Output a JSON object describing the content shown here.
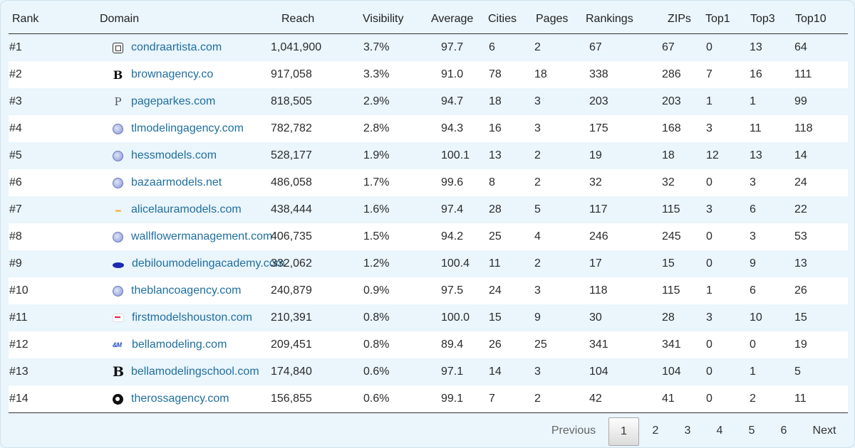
{
  "columns": [
    "Rank",
    "Domain",
    "Reach",
    "Visibility",
    "Average",
    "Cities",
    "Pages",
    "Rankings",
    "ZIPs",
    "Top1",
    "Top3",
    "Top10"
  ],
  "rows": [
    {
      "rank": "#1",
      "domain": "condraartista.com",
      "icon": "framed-square-icon",
      "reach": "1,041,900",
      "visibility": "3.7%",
      "average": "97.7",
      "cities": "6",
      "pages": "2",
      "rankings": "67",
      "zips": "67",
      "top1": "0",
      "top3": "13",
      "top10": "64"
    },
    {
      "rank": "#2",
      "domain": "brownagency.co",
      "icon": "letter-b-icon",
      "reach": "917,058",
      "visibility": "3.3%",
      "average": "91.0",
      "cities": "78",
      "pages": "18",
      "rankings": "338",
      "zips": "286",
      "top1": "7",
      "top3": "16",
      "top10": "111"
    },
    {
      "rank": "#3",
      "domain": "pageparkes.com",
      "icon": "letter-p-icon",
      "reach": "818,505",
      "visibility": "2.9%",
      "average": "94.7",
      "cities": "18",
      "pages": "3",
      "rankings": "203",
      "zips": "203",
      "top1": "1",
      "top3": "1",
      "top10": "99"
    },
    {
      "rank": "#4",
      "domain": "tlmodelingagency.com",
      "icon": "globe-icon",
      "reach": "782,782",
      "visibility": "2.8%",
      "average": "94.3",
      "cities": "16",
      "pages": "3",
      "rankings": "175",
      "zips": "168",
      "top1": "3",
      "top3": "11",
      "top10": "118"
    },
    {
      "rank": "#5",
      "domain": "hessmodels.com",
      "icon": "globe-icon",
      "reach": "528,177",
      "visibility": "1.9%",
      "average": "100.1",
      "cities": "13",
      "pages": "2",
      "rankings": "19",
      "zips": "18",
      "top1": "12",
      "top3": "13",
      "top10": "14"
    },
    {
      "rank": "#6",
      "domain": "bazaarmodels.net",
      "icon": "globe-icon",
      "reach": "486,058",
      "visibility": "1.7%",
      "average": "99.6",
      "cities": "8",
      "pages": "2",
      "rankings": "32",
      "zips": "32",
      "top1": "0",
      "top3": "3",
      "top10": "24"
    },
    {
      "rank": "#7",
      "domain": "alicelauramodels.com",
      "icon": "sunrise-icon",
      "reach": "438,444",
      "visibility": "1.6%",
      "average": "97.4",
      "cities": "28",
      "pages": "5",
      "rankings": "117",
      "zips": "115",
      "top1": "3",
      "top3": "6",
      "top10": "22"
    },
    {
      "rank": "#8",
      "domain": "wallflowermanagement.com",
      "icon": "globe-icon",
      "reach": "406,735",
      "visibility": "1.5%",
      "average": "94.2",
      "cities": "25",
      "pages": "4",
      "rankings": "246",
      "zips": "245",
      "top1": "0",
      "top3": "3",
      "top10": "53"
    },
    {
      "rank": "#9",
      "domain": "debiloumodelingacademy.com",
      "icon": "blue-oval-icon",
      "reach": "332,062",
      "visibility": "1.2%",
      "average": "100.4",
      "cities": "11",
      "pages": "2",
      "rankings": "17",
      "zips": "15",
      "top1": "0",
      "top3": "9",
      "top10": "13"
    },
    {
      "rank": "#10",
      "domain": "theblancoagency.com",
      "icon": "globe-icon",
      "reach": "240,879",
      "visibility": "0.9%",
      "average": "97.5",
      "cities": "24",
      "pages": "3",
      "rankings": "118",
      "zips": "115",
      "top1": "1",
      "top3": "6",
      "top10": "26"
    },
    {
      "rank": "#11",
      "domain": "firstmodelshouston.com",
      "icon": "flag-icon",
      "reach": "210,391",
      "visibility": "0.8%",
      "average": "100.0",
      "cities": "15",
      "pages": "9",
      "rankings": "30",
      "zips": "28",
      "top1": "3",
      "top3": "10",
      "top10": "15"
    },
    {
      "rank": "#12",
      "domain": "bellamodeling.com",
      "icon": "bm-logo-icon",
      "reach": "209,451",
      "visibility": "0.8%",
      "average": "89.4",
      "cities": "26",
      "pages": "25",
      "rankings": "341",
      "zips": "341",
      "top1": "0",
      "top3": "0",
      "top10": "19"
    },
    {
      "rank": "#13",
      "domain": "bellamodelingschool.com",
      "icon": "letter-b-icon",
      "reach": "174,840",
      "visibility": "0.6%",
      "average": "97.1",
      "cities": "14",
      "pages": "3",
      "rankings": "104",
      "zips": "104",
      "top1": "0",
      "top3": "1",
      "top10": "5"
    },
    {
      "rank": "#14",
      "domain": "therossagency.com",
      "icon": "circle-logo-icon",
      "reach": "156,855",
      "visibility": "0.6%",
      "average": "99.1",
      "cities": "7",
      "pages": "2",
      "rankings": "42",
      "zips": "41",
      "top1": "0",
      "top3": "2",
      "top10": "11"
    }
  ],
  "pagination": {
    "previous": "Previous",
    "pages": [
      "1",
      "2",
      "3",
      "4",
      "5",
      "6"
    ],
    "active_page": "1",
    "next": "Next"
  },
  "colors": {
    "link": "#1f6f9f",
    "stripe": "#eaf5fc",
    "background": "#e9f4fb"
  }
}
